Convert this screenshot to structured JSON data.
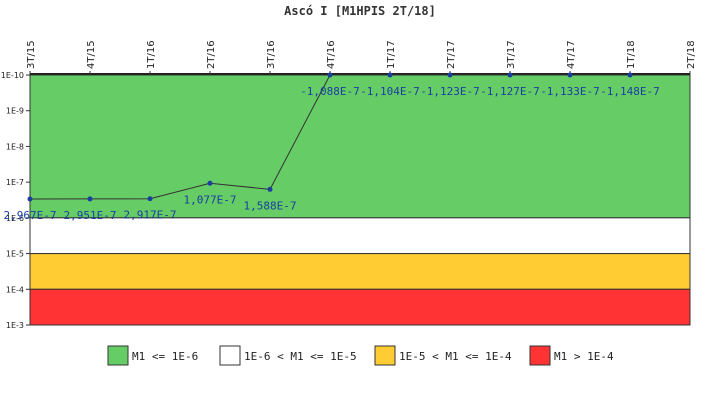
{
  "chart_data": {
    "type": "line",
    "title": "Ascó I [M1HPIS 2T/18]",
    "xlabel": "",
    "ylabel": "",
    "y_scale": "log",
    "y_direction": "inverted",
    "ylim": [
      1e-10,
      0.001
    ],
    "y_ticks": [
      "1E-10",
      "1E-9",
      "1E-8",
      "1E-7",
      "1E-6",
      "1E-5",
      "1E-4",
      "1E-3"
    ],
    "categories": [
      "3T/15",
      "4T/15",
      "1T/16",
      "2T/16",
      "3T/16",
      "4T/16",
      "1T/17",
      "2T/17",
      "3T/17",
      "4T/17",
      "1T/18",
      "2T/18"
    ],
    "series": [
      {
        "name": "",
        "values": [
          2.967e-07,
          2.951e-07,
          2.917e-07,
          1.077e-07,
          1.588e-07,
          -1.088e-07,
          -1.104e-07,
          -1.123e-07,
          -1.127e-07,
          -1.133e-07,
          -1.148e-07,
          null
        ],
        "labels": [
          "2,967E-7",
          "2,951E-7",
          "2,917E-7",
          "1,077E-7",
          "1,588E-7",
          "-1,088E-7",
          "-1,104E-7",
          "-1,123E-7",
          "-1,127E-7",
          "-1,133E-7",
          "-1,148E-7",
          ""
        ],
        "color": "#1a3fa0"
      }
    ],
    "bands": [
      {
        "from": 1e-10,
        "to": 1e-06,
        "color": "#66cc66",
        "label": "M1 <= 1E-6"
      },
      {
        "from": 1e-06,
        "to": 1e-05,
        "color": "#ffffff",
        "label": "1E-6 < M1 <= 1E-5"
      },
      {
        "from": 1e-05,
        "to": 0.0001,
        "color": "#ffcc33",
        "label": "1E-5 < M1 <= 1E-4"
      },
      {
        "from": 0.0001,
        "to": 0.001,
        "color": "#ff3333",
        "label": "M1 > 1E-4"
      }
    ],
    "legend_position": "bottom",
    "grid": false
  }
}
